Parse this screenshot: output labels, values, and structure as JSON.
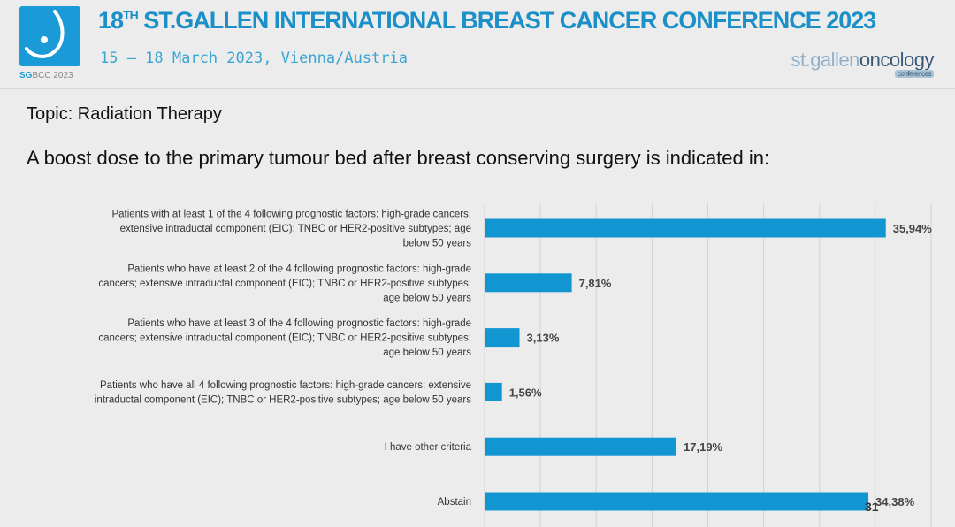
{
  "header": {
    "title_prefix": "18",
    "title_sup": "TH",
    "title_rest": " ST.GALLEN INTERNATIONAL BREAST CANCER CONFERENCE 2023",
    "dates": "15 – 18 March 2023, Vienna/Austria",
    "logo_caption_bold": "SG",
    "logo_caption_rest": "BCC 2023",
    "brand_left": "st.gallen",
    "brand_right": "oncology",
    "brand_sub": "conferences"
  },
  "topic": "Topic: Radiation Therapy",
  "question": "A boost dose to the primary tumour bed after breast conserving surgery is indicated in:",
  "overlay_number": "31",
  "chart_data": {
    "type": "bar",
    "orientation": "horizontal",
    "title": "A boost dose to the primary tumour bed after breast conserving surgery is indicated in:",
    "xlabel": "",
    "ylabel": "",
    "xlim": [
      0,
      40
    ],
    "grid": true,
    "grid_step": 5,
    "bar_color": "#1296d2",
    "categories": [
      [
        "Patients with at least 1 of the 4 following prognostic factors: high-grade cancers;",
        "extensive intraductal component (EIC); TNBC or HER2-positive subtypes; age",
        "below 50 years"
      ],
      [
        "Patients who have at least 2 of the 4 following prognostic factors: high-grade",
        "cancers; extensive intraductal component (EIC); TNBC or HER2-positive subtypes;",
        "age below 50 years"
      ],
      [
        "Patients who have at least 3 of the 4 following prognostic factors: high-grade",
        "cancers; extensive intraductal component (EIC); TNBC or HER2-positive subtypes;",
        "age below 50 years"
      ],
      [
        "Patients who have all 4 following prognostic factors: high-grade cancers; extensive",
        "intraductal component (EIC); TNBC or HER2-positive subtypes; age below 50 years"
      ],
      [
        "I have other criteria"
      ],
      [
        "Abstain"
      ]
    ],
    "values": [
      35.94,
      7.81,
      3.13,
      1.56,
      17.19,
      34.38
    ],
    "data_labels": [
      "35,94%",
      "7,81%",
      "3,13%",
      "1,56%",
      "17,19%",
      "34,38%"
    ]
  }
}
